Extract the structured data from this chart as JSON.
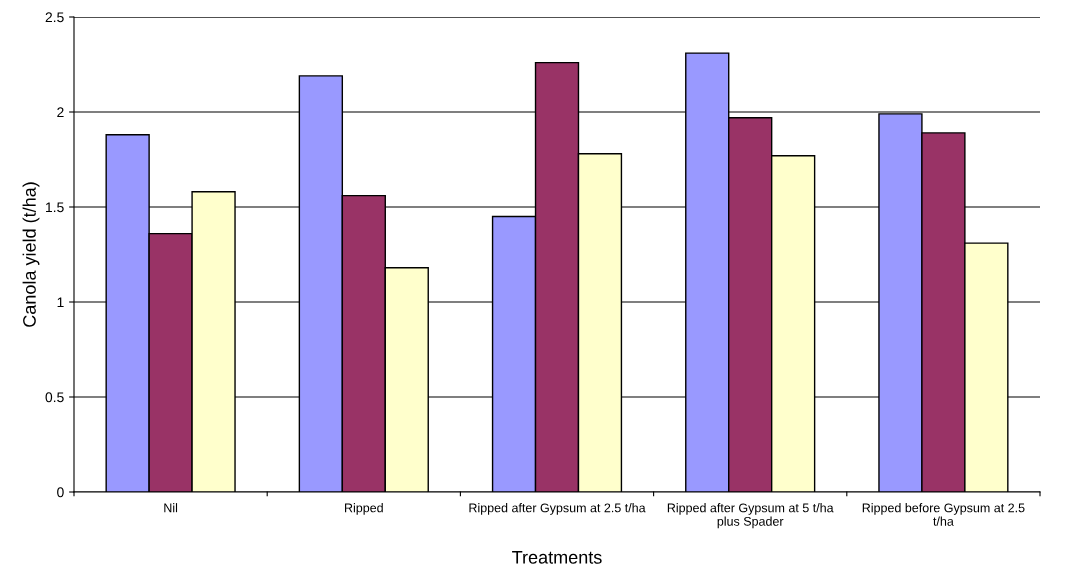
{
  "chart_data": {
    "type": "bar",
    "xlabel": "Treatments",
    "ylabel": "Canola yield (t/ha)",
    "categories": [
      "Nil",
      "Ripped",
      "Ripped after Gypsum at 2.5 t/ha",
      "Ripped after Gypsum at 5 t/ha plus Spader",
      "Ripped before Gypsum at 2.5 t/ha"
    ],
    "series": [
      {
        "color": "#9999ff",
        "values": [
          1.88,
          2.19,
          1.45,
          2.31,
          1.99
        ]
      },
      {
        "color": "#993366",
        "values": [
          1.36,
          1.56,
          2.26,
          1.97,
          1.89
        ]
      },
      {
        "color": "#ffffcc",
        "values": [
          1.58,
          1.18,
          1.78,
          1.77,
          1.31
        ]
      }
    ],
    "ylim": [
      0,
      2.5
    ],
    "yticks": [
      0,
      0.5,
      1,
      1.5,
      2,
      2.5
    ],
    "grid": "y",
    "legend": false
  }
}
